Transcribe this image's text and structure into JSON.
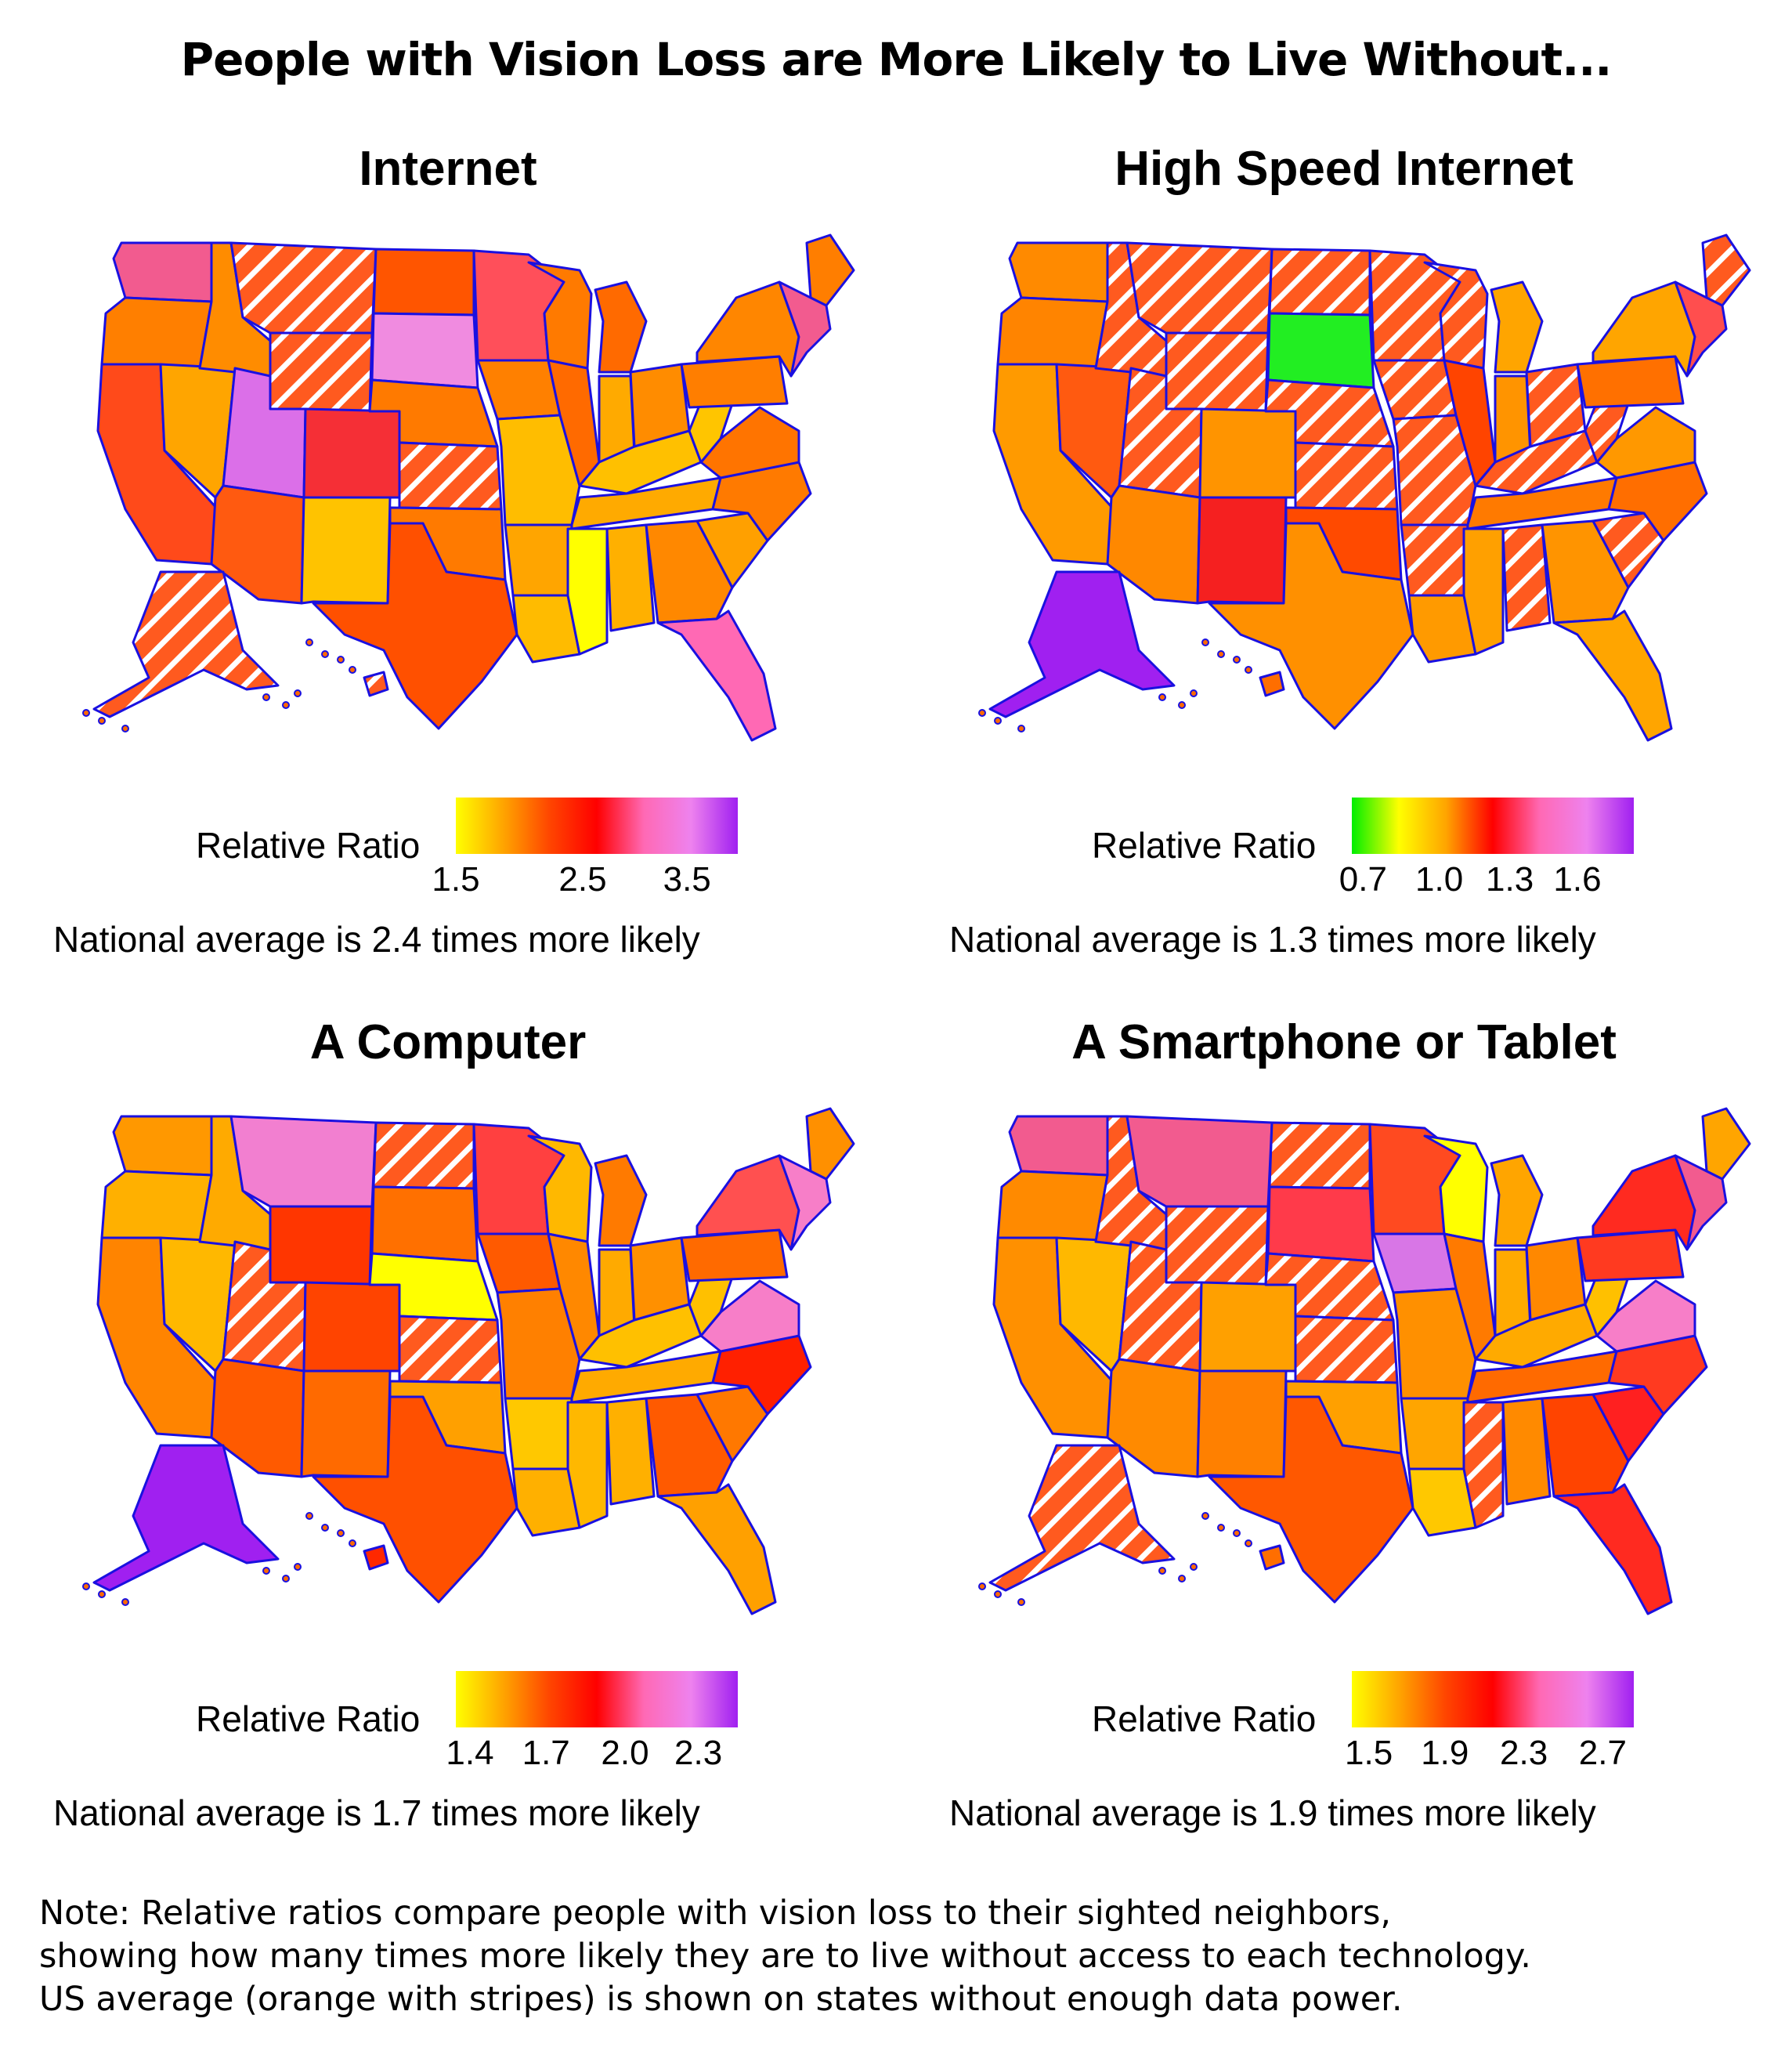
{
  "title": "People with Vision Loss are More Likely to Live Without...",
  "legend_label": "Relative Ratio",
  "panels": [
    {
      "id": "internet",
      "title": "Internet",
      "ticks": [
        "1.5",
        "2.5",
        "3.5"
      ],
      "tick_fractions": [
        0.0,
        0.45,
        0.82
      ],
      "gradient": [
        "#ffff00",
        "#ffa500",
        "#ff4500",
        "#ff0000",
        "#ff69b4",
        "#ee82ee",
        "#a020f0"
      ],
      "average": "National average is 2.4 times more likely",
      "states": {
        "WA": "#f25b8f",
        "OR": "#ff7f00",
        "CA": "#ff4a1a",
        "NV": "#ffa500",
        "ID": "#ff8c00",
        "MT": "striped",
        "WY": "striped",
        "UT": "#db6fe8",
        "CO": "#f52f36",
        "AZ": "#ff5a10",
        "NM": "#ffc300",
        "ND": "#ff5500",
        "SD": "#f08be0",
        "NE": "#ff7a00",
        "KS": "striped",
        "OK": "#ff7a00",
        "TX": "#ff5000",
        "MN": "#ff4f5a",
        "IA": "#ff8000",
        "MO": "#ffbd00",
        "AR": "#ffa500",
        "LA": "#ffbb00",
        "WI": "#ff7a00",
        "IL": "#ff6a00",
        "MI": "#ff6a00",
        "IN": "#ffaa00",
        "OH": "#ff8c00",
        "KY": "#ffc000",
        "TN": "#ffaa00",
        "MS": "#ffff00",
        "AL": "#ffb000",
        "GA": "#ff8800",
        "FL": "#ff69b4",
        "SC": "#ffa000",
        "NC": "#ff7a00",
        "VA": "#ff7400",
        "WV": "#ffc500",
        "PA": "#ff7e00",
        "NY": "#ff8600",
        "ME": "#ff7e00",
        "NE_US": "#f25b8f",
        "AK": "striped",
        "HI": "striped"
      }
    },
    {
      "id": "high-speed",
      "title": "High Speed Internet",
      "ticks": [
        "0.7",
        "1.0",
        "1.3",
        "1.6"
      ],
      "tick_fractions": [
        0.04,
        0.31,
        0.56,
        0.8
      ],
      "gradient": [
        "#00ee00",
        "#ffff00",
        "#ffa500",
        "#ff0000",
        "#ff69b4",
        "#ee82ee",
        "#a020f0"
      ],
      "average": "National average is 1.3 times more likely",
      "states": {
        "WA": "#ff8a00",
        "OR": "#ff8400",
        "CA": "#ff9a00",
        "NV": "#ff5a10",
        "ID": "striped",
        "MT": "striped",
        "WY": "striped",
        "UT": "striped",
        "CO": "#ff9400",
        "AZ": "#ff8800",
        "NM": "#f52020",
        "ND": "striped",
        "SD": "#22ee22",
        "NE": "striped",
        "KS": "striped",
        "OK": "#ff4a00",
        "TX": "#ff9000",
        "MN": "striped",
        "IA": "striped",
        "MO": "striped",
        "AR": "striped",
        "LA": "#ff9a00",
        "WI": "striped",
        "IL": "#ff4400",
        "MI": "#ffa500",
        "IN": "#ff9400",
        "OH": "striped",
        "KY": "striped",
        "TN": "#ff7a00",
        "MS": "#ffa000",
        "AL": "striped",
        "GA": "#ff9400",
        "FL": "#ffa500",
        "SC": "striped",
        "NC": "#ff6e00",
        "VA": "#ff9800",
        "WV": "striped",
        "PA": "#ff7000",
        "NY": "#ffa500",
        "ME": "striped",
        "NE_US": "#ff4e4e",
        "AK": "#a020f0",
        "HI": "#ff6e00"
      }
    },
    {
      "id": "computer",
      "title": "A Computer",
      "ticks": [
        "1.4",
        "1.7",
        "2.0",
        "2.3"
      ],
      "tick_fractions": [
        0.05,
        0.32,
        0.6,
        0.86
      ],
      "gradient": [
        "#ffff00",
        "#ffa500",
        "#ff4500",
        "#ff0000",
        "#ff69b4",
        "#ee82ee",
        "#a020f0"
      ],
      "average": "National average is 1.7 times more likely",
      "states": {
        "WA": "#ff9800",
        "OR": "#ffb000",
        "CA": "#ff8400",
        "NV": "#ffb800",
        "ID": "#ffaa00",
        "MT": "#f27fd0",
        "WY": "#ff3600",
        "UT": "striped",
        "CO": "#ff4400",
        "AZ": "#ff5a00",
        "NM": "#ff6a00",
        "ND": "striped",
        "SD": "#ff7000",
        "NE": "#ffff00",
        "KS": "striped",
        "OK": "#ffa000",
        "TX": "#ff5000",
        "MN": "#ff4040",
        "IA": "#ff5a00",
        "MO": "#ff8000",
        "AR": "#ffc800",
        "LA": "#ffb000",
        "WI": "#ffb800",
        "IL": "#ff8800",
        "MI": "#ff7a00",
        "IN": "#ffaa00",
        "OH": "#ff9000",
        "KY": "#ffc000",
        "TN": "#ffaa00",
        "MS": "#ffb800",
        "AL": "#ffb000",
        "GA": "#ff5a00",
        "FL": "#ffa000",
        "SC": "#ff7800",
        "NC": "#ff2000",
        "VA": "#f77ec8",
        "WV": "#ffc000",
        "PA": "#ff6a00",
        "NY": "#ff5050",
        "ME": "#ff9000",
        "NE_US": "#f77ec8",
        "AK": "#a020f0",
        "HI": "#ff2800"
      }
    },
    {
      "id": "smartphone",
      "title": "A Smartphone or Tablet",
      "ticks": [
        "1.5",
        "1.9",
        "2.3",
        "2.7"
      ],
      "tick_fractions": [
        0.06,
        0.33,
        0.61,
        0.89
      ],
      "gradient": [
        "#ffff00",
        "#ffa500",
        "#ff4500",
        "#ff0000",
        "#ff69b4",
        "#ee82ee",
        "#a020f0"
      ],
      "average": "National average is 1.9 times more likely",
      "states": {
        "WA": "#f25b8f",
        "OR": "#ff8a00",
        "CA": "#ff9000",
        "NV": "#ffb800",
        "ID": "striped",
        "MT": "#f25b8f",
        "WY": "striped",
        "UT": "striped",
        "CO": "#ffa000",
        "AZ": "#ff8a00",
        "NM": "#ff8000",
        "ND": "striped",
        "SD": "#ff3a4a",
        "NE": "striped",
        "KS": "striped",
        "OK": "#ffa000",
        "TX": "#ff5800",
        "MN": "#ff4a20",
        "IA": "#d876e6",
        "MO": "#ff9000",
        "AR": "#ffa500",
        "LA": "#ffc800",
        "WI": "#ffff00",
        "IL": "#ff7a00",
        "MI": "#ffa500",
        "IN": "#ffaa00",
        "OH": "#ff8800",
        "KY": "#ffaa00",
        "TN": "#ff6a00",
        "MS": "striped",
        "AL": "#ff8a00",
        "GA": "#ff4400",
        "FL": "#ff2a20",
        "SC": "#ff2020",
        "NC": "#ff3a20",
        "VA": "#f77ec8",
        "WV": "#ffc000",
        "PA": "#ff3a20",
        "NY": "#ff2a20",
        "ME": "#ffa500",
        "NE_US": "#f25b8f",
        "AK": "striped",
        "HI": "#ff6e00"
      }
    }
  ],
  "footnote": [
    "Note: Relative ratios compare people with vision loss to their sighted neighbors,",
    "showing how many times more likely they are to live without access to each technology.",
    "US average (orange with stripes) is shown on states without enough data power."
  ]
}
